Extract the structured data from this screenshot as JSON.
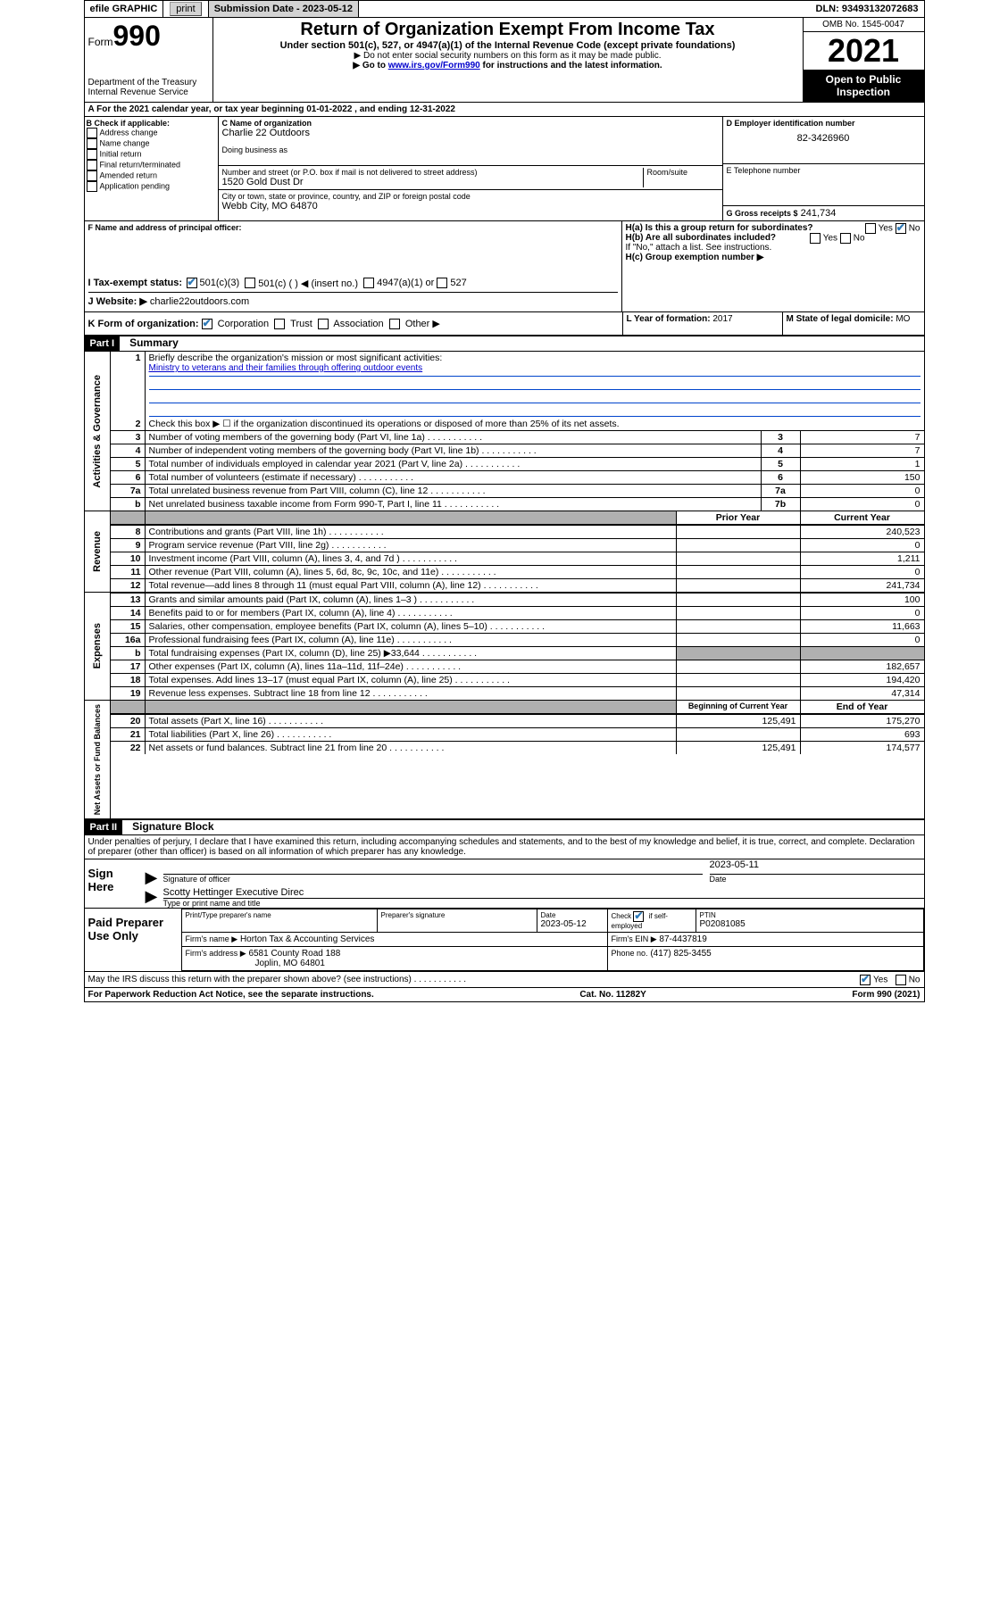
{
  "topbar": {
    "efile": "efile GRAPHIC",
    "print": "print",
    "sub_label": "Submission Date - 2023-05-12",
    "dln": "DLN: 93493132072683"
  },
  "header": {
    "form_prefix": "Form",
    "form_number": "990",
    "dept": "Department of the Treasury",
    "irs": "Internal Revenue Service",
    "title": "Return of Organization Exempt From Income Tax",
    "subtitle": "Under section 501(c), 527, or 4947(a)(1) of the Internal Revenue Code (except private foundations)",
    "instr1": "▶ Do not enter social security numbers on this form as it may be made public.",
    "instr2_pre": "▶ Go to ",
    "instr2_link": "www.irs.gov/Form990",
    "instr2_post": " for instructions and the latest information.",
    "omb": "OMB No. 1545-0047",
    "year": "2021",
    "open": "Open to Public Inspection"
  },
  "yearline": "For the 2021 calendar year, or tax year beginning 01-01-2022   , and ending 12-31-2022",
  "boxB": {
    "label": "B Check if applicable:",
    "items": [
      "Address change",
      "Name change",
      "Initial return",
      "Final return/terminated",
      "Amended return",
      "Application pending"
    ]
  },
  "boxC": {
    "name_label": "C Name of organization",
    "name": "Charlie 22 Outdoors",
    "dba_label": "Doing business as",
    "street_label": "Number and street (or P.O. box if mail is not delivered to street address)",
    "room_label": "Room/suite",
    "street": "1520 Gold Dust Dr",
    "city_label": "City or town, state or province, country, and ZIP or foreign postal code",
    "city": "Webb City, MO  64870"
  },
  "boxD": {
    "label": "D Employer identification number",
    "val": "82-3426960"
  },
  "boxE": {
    "label": "E Telephone number",
    "val": ""
  },
  "boxG": {
    "label": "G Gross receipts $",
    "val": "241,734"
  },
  "boxF": {
    "label": "F  Name and address of principal officer:"
  },
  "boxH": {
    "a": "H(a)  Is this a group return for subordinates?",
    "b": "H(b)  Are all subordinates included?",
    "b_note": "If \"No,\" attach a list. See instructions.",
    "c": "H(c)  Group exemption number ▶",
    "yes": "Yes",
    "no": "No"
  },
  "boxI": {
    "label": "I  Tax-exempt status:",
    "o1": "501(c)(3)",
    "o2": "501(c) (  ) ◀ (insert no.)",
    "o3": "4947(a)(1) or",
    "o4": "527"
  },
  "boxJ": {
    "label": "J  Website: ▶",
    "val": "charlie22outdoors.com"
  },
  "boxK": {
    "label": "K Form of organization:",
    "o1": "Corporation",
    "o2": "Trust",
    "o3": "Association",
    "o4": "Other ▶"
  },
  "boxL": {
    "label": "L Year of formation:",
    "val": "2017"
  },
  "boxM": {
    "label": "M State of legal domicile:",
    "val": "MO"
  },
  "part1": {
    "header": "Part I",
    "title": "Summary",
    "sideA": "Activities & Governance",
    "sideR": "Revenue",
    "sideE": "Expenses",
    "sideN": "Net Assets or Fund Balances",
    "l1": "Briefly describe the organization's mission or most significant activities:",
    "mission": "Ministry to veterans and their families through offering outdoor events",
    "l2": "Check this box ▶ ☐  if the organization discontinued its operations or disposed of more than 25% of its net assets.",
    "rows_g": [
      {
        "n": "3",
        "t": "Number of voting members of the governing body (Part VI, line 1a)",
        "box": "3",
        "v": "7"
      },
      {
        "n": "4",
        "t": "Number of independent voting members of the governing body (Part VI, line 1b)",
        "box": "4",
        "v": "7"
      },
      {
        "n": "5",
        "t": "Total number of individuals employed in calendar year 2021 (Part V, line 2a)",
        "box": "5",
        "v": "1"
      },
      {
        "n": "6",
        "t": "Total number of volunteers (estimate if necessary)",
        "box": "6",
        "v": "150"
      },
      {
        "n": "7a",
        "t": "Total unrelated business revenue from Part VIII, column (C), line 12",
        "box": "7a",
        "v": "0"
      },
      {
        "n": "b",
        "t": "Net unrelated business taxable income from Form 990-T, Part I, line 11",
        "box": "7b",
        "v": "0"
      }
    ],
    "hdr_prior": "Prior Year",
    "hdr_curr": "Current Year",
    "rows_r": [
      {
        "n": "8",
        "t": "Contributions and grants (Part VIII, line 1h)",
        "p": "",
        "c": "240,523"
      },
      {
        "n": "9",
        "t": "Program service revenue (Part VIII, line 2g)",
        "p": "",
        "c": "0"
      },
      {
        "n": "10",
        "t": "Investment income (Part VIII, column (A), lines 3, 4, and 7d )",
        "p": "",
        "c": "1,211"
      },
      {
        "n": "11",
        "t": "Other revenue (Part VIII, column (A), lines 5, 6d, 8c, 9c, 10c, and 11e)",
        "p": "",
        "c": "0"
      },
      {
        "n": "12",
        "t": "Total revenue—add lines 8 through 11 (must equal Part VIII, column (A), line 12)",
        "p": "",
        "c": "241,734"
      }
    ],
    "rows_e": [
      {
        "n": "13",
        "t": "Grants and similar amounts paid (Part IX, column (A), lines 1–3 )",
        "p": "",
        "c": "100"
      },
      {
        "n": "14",
        "t": "Benefits paid to or for members (Part IX, column (A), line 4)",
        "p": "",
        "c": "0"
      },
      {
        "n": "15",
        "t": "Salaries, other compensation, employee benefits (Part IX, column (A), lines 5–10)",
        "p": "",
        "c": "11,663"
      },
      {
        "n": "16a",
        "t": "Professional fundraising fees (Part IX, column (A), line 11e)",
        "p": "",
        "c": "0"
      },
      {
        "n": "b",
        "t": "Total fundraising expenses (Part IX, column (D), line 25) ▶33,644",
        "p": "shaded",
        "c": "shaded"
      },
      {
        "n": "17",
        "t": "Other expenses (Part IX, column (A), lines 11a–11d, 11f–24e)",
        "p": "",
        "c": "182,657"
      },
      {
        "n": "18",
        "t": "Total expenses. Add lines 13–17 (must equal Part IX, column (A), line 25)",
        "p": "",
        "c": "194,420"
      },
      {
        "n": "19",
        "t": "Revenue less expenses. Subtract line 18 from line 12",
        "p": "",
        "c": "47,314"
      }
    ],
    "hdr_beg": "Beginning of Current Year",
    "hdr_end": "End of Year",
    "rows_n": [
      {
        "n": "20",
        "t": "Total assets (Part X, line 16)",
        "p": "125,491",
        "c": "175,270"
      },
      {
        "n": "21",
        "t": "Total liabilities (Part X, line 26)",
        "p": "",
        "c": "693"
      },
      {
        "n": "22",
        "t": "Net assets or fund balances. Subtract line 21 from line 20",
        "p": "125,491",
        "c": "174,577"
      }
    ]
  },
  "part2": {
    "header": "Part II",
    "title": "Signature Block",
    "decl": "Under penalties of perjury, I declare that I have examined this return, including accompanying schedules and statements, and to the best of my knowledge and belief, it is true, correct, and complete. Declaration of preparer (other than officer) is based on all information of which preparer has any knowledge.",
    "sign_here": "Sign Here",
    "sig_officer": "Signature of officer",
    "sig_date": "Date",
    "date_val": "2023-05-11",
    "officer_name": "Scotty Hettinger Executive Direc",
    "type_name": "Type or print name and title",
    "paid_prep": "Paid Preparer Use Only",
    "prep_hdr1": "Print/Type preparer's name",
    "prep_hdr2": "Preparer's signature",
    "prep_hdr3": "Date",
    "prep_date": "2023-05-12",
    "prep_hdr4": "Check ☑ if self-employed",
    "prep_hdr5": "PTIN",
    "ptin": "P02081085",
    "firm_name_l": "Firm's name    ▶",
    "firm_name": "Horton Tax & Accounting Services",
    "firm_ein_l": "Firm's EIN ▶",
    "firm_ein": "87-4437819",
    "firm_addr_l": "Firm's address ▶",
    "firm_addr1": "6581 County Road 188",
    "firm_addr2": "Joplin, MO  64801",
    "phone_l": "Phone no.",
    "phone": "(417) 825-3455",
    "discuss": "May the IRS discuss this return with the preparer shown above? (see instructions)",
    "yes": "Yes",
    "no": "No"
  },
  "footer": {
    "left": "For Paperwork Reduction Act Notice, see the separate instructions.",
    "mid": "Cat. No. 11282Y",
    "right": "Form 990 (2021)"
  }
}
